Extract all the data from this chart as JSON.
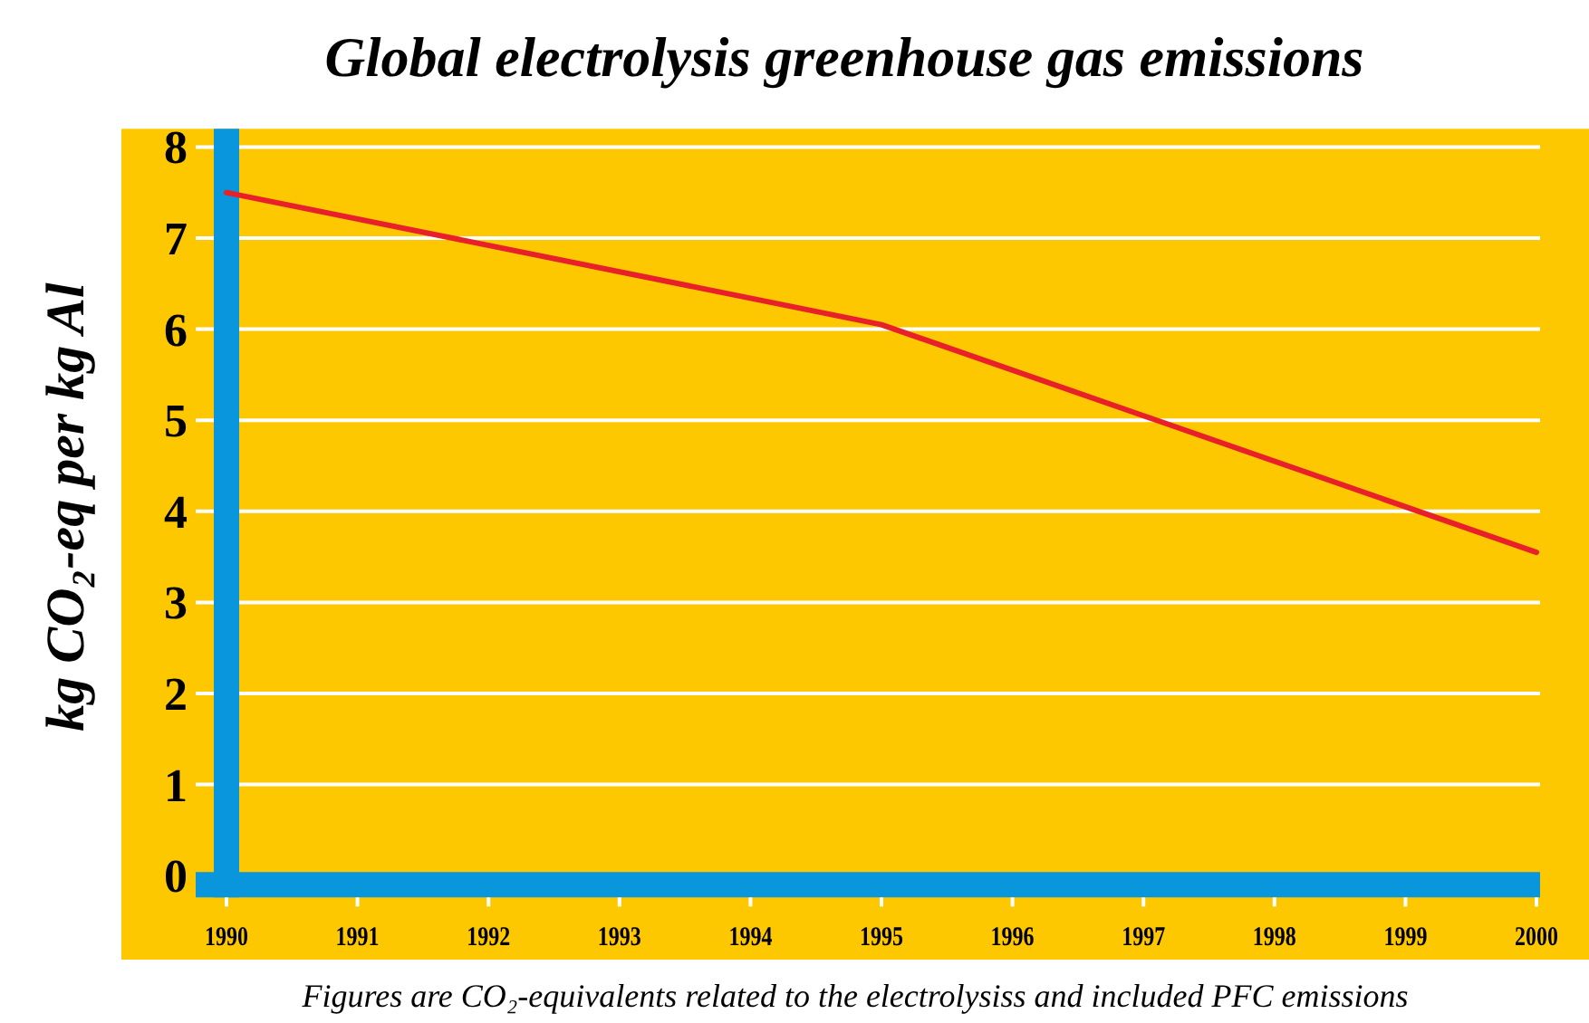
{
  "chart_data": {
    "type": "line",
    "title": "Global electrolysis greenhouse gas emissions",
    "ylabel": "kg CO₂-eq per kg Al",
    "annotations": [
      "Figures are CO₂-equivalents related to the electrolysiss and included PFC emissions"
    ],
    "x": [
      1990,
      1995,
      2000
    ],
    "series": [
      {
        "color": "#e8202a",
        "values": [
          7.5,
          6.05,
          3.55
        ]
      }
    ],
    "xlim": [
      1990,
      2000
    ],
    "xticks": [
      1990,
      1991,
      1992,
      1993,
      1994,
      1995,
      1996,
      1997,
      1998,
      1999,
      2000
    ],
    "ylim": [
      -0.24,
      8.2
    ],
    "yticks": [
      0,
      1,
      2,
      3,
      4,
      5,
      6,
      7,
      8
    ],
    "grid": "y",
    "marker": "none",
    "line_style": "solid"
  }
}
